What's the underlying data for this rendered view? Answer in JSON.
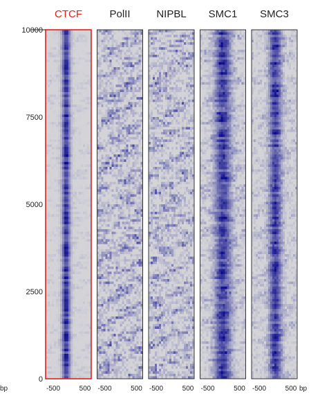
{
  "chart_data": {
    "type": "heatmap",
    "title": "",
    "y_axis": {
      "range": [
        0,
        10000
      ],
      "ticks": [
        0,
        2500,
        5000,
        7500,
        10000
      ]
    },
    "x_axis": {
      "range": [
        -500,
        500
      ],
      "ticks": [
        -500,
        500
      ],
      "unit": "bp"
    },
    "row_sorting": "rows ordered by CTCF signal",
    "panels": [
      {
        "name": "CTCF",
        "signal": "strong centered band",
        "title_color": "#e0201b",
        "frame_color": "#e0201b"
      },
      {
        "name": "PolII",
        "signal": "diffuse background, no central enrichment",
        "title_color": "#222222",
        "frame_color": "#333333"
      },
      {
        "name": "NIPBL",
        "signal": "diffuse background, no central enrichment",
        "title_color": "#222222",
        "frame_color": "#333333"
      },
      {
        "name": "SMC1",
        "signal": "broad centered band",
        "title_color": "#222222",
        "frame_color": "#333333"
      },
      {
        "name": "SMC3",
        "signal": "centered band",
        "title_color": "#222222",
        "frame_color": "#333333"
      }
    ],
    "colors": {
      "low": "#d4d4d8",
      "high": "#0a0a8c"
    }
  }
}
